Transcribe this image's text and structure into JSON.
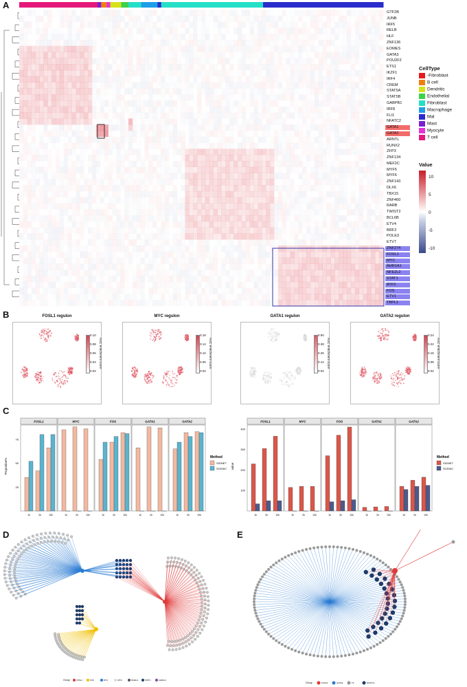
{
  "panels": {
    "a": "A",
    "b": "B",
    "c": "C",
    "d": "D",
    "e": "E"
  },
  "heatmap": {
    "genes": [
      "GTF2B",
      "JUNB",
      "IRF5",
      "RELB",
      "HLF",
      "ZNF136",
      "EOMES",
      "GATA3",
      "POU2F2",
      "ETS1",
      "IKZF1",
      "IRF4",
      "CREM",
      "STAT5A",
      "STAT5B",
      "GABPB1",
      "IRF8",
      "FLI1",
      "NFATC2",
      "GATA1",
      "GATA2",
      "ARNTL",
      "RUNX2",
      "ZFP3",
      "ZNF134",
      "MEF2C",
      "MYF5",
      "MYF6",
      "ZNF143",
      "DLX6",
      "TBX15",
      "ZNF460",
      "RARB",
      "TWIST2",
      "BCL6B",
      "ETV4",
      "BRF2",
      "POLE3",
      "ETV7",
      "ZNF274",
      "FOSL1",
      "MYC",
      "AHR1A1",
      "NFE2L2",
      "STAT1",
      "ATF3",
      "FOS",
      "ETV1",
      "TBPL1"
    ],
    "red_highlight": [
      "GATA1",
      "GATA2"
    ],
    "blue_highlight": [
      "ZNF274",
      "FOSL1",
      "MYC",
      "AHR1A1",
      "NFE2L2",
      "STAT1",
      "ATF3",
      "FOS",
      "ETV1",
      "TBPL1"
    ],
    "celltype_title": "CellType",
    "celltypes": [
      {
        "name": "-Fibroblast",
        "color": "#e41a1c"
      },
      {
        "name": "B cell",
        "color": "#f07f12"
      },
      {
        "name": "Dendritic",
        "color": "#d7e21a"
      },
      {
        "name": "Endothelial",
        "color": "#3ed14a"
      },
      {
        "name": "Fibroblast",
        "color": "#25dfc8"
      },
      {
        "name": "Macrophage",
        "color": "#1f9ee8"
      },
      {
        "name": "Mal",
        "color": "#2b2ccc"
      },
      {
        "name": "Mast",
        "color": "#7a1fd1"
      },
      {
        "name": "Myocyte",
        "color": "#e234d8"
      },
      {
        "name": "T cell",
        "color": "#e5197a"
      }
    ],
    "value_title": "Value",
    "value_ticks": [
      "10",
      "5",
      "0",
      "-5",
      "-10"
    ]
  },
  "umaps": [
    {
      "title": "FOSL1 regulon",
      "ticks": [
        "0.10",
        "0.08",
        "0.06",
        "0.04",
        "0.02"
      ],
      "ylab": "AUC enrichment score",
      "color": "#e05a66"
    },
    {
      "title": "MYC regulon",
      "ticks": [
        "0.18",
        "0.14",
        "0.10",
        "0.06",
        "0.02"
      ],
      "ylab": "AUC enrichment score",
      "color": "#e05a66"
    },
    {
      "title": "GATA1 regulon",
      "ticks": [
        "0.50",
        "0.38",
        "0.26",
        "0.14",
        "0.02"
      ],
      "ylab": "AUC enrichment score",
      "color": "#d9d9d9"
    },
    {
      "title": "GATA2 regulon",
      "ticks": [
        "0.24",
        "0.22",
        "0.15",
        "0.08",
        "0.02"
      ],
      "ylab": "AUC enrichment score",
      "color": "#e05a66"
    }
  ],
  "chart_data": [
    {
      "type": "bar",
      "title": "",
      "ylabel": "Proportion%",
      "xlabel": "",
      "ylim": [
        0,
        90
      ],
      "y_ticks": [
        "25",
        "50",
        "75"
      ],
      "facets": [
        "FOSL1",
        "MYC",
        "FOS",
        "GATA1",
        "GATA2"
      ],
      "categories": [
        "1k",
        "2k",
        "10k"
      ],
      "legend_title": "Method",
      "series": [
        {
          "name": "SIGNET",
          "color": "#f2b9a0",
          "values": {
            "FOSL1": [
              35,
              42,
              66
            ],
            "MYC": [
              85,
              88,
              86
            ],
            "FOS": [
              54,
              72,
              82
            ],
            "GATA1": [
              66,
              88,
              87
            ],
            "GATA2": [
              65,
              82,
              83
            ]
          }
        },
        {
          "name": "SCENIC",
          "color": "#5ab4cf",
          "values": {
            "FOSL1": [
              52,
              80,
              80
            ],
            "MYC": [
              0,
              0,
              0
            ],
            "FOS": [
              72,
              78,
              81
            ],
            "GATA1": [
              0,
              0,
              0
            ],
            "GATA2": [
              72,
              78,
              82
            ]
          }
        }
      ]
    },
    {
      "type": "bar",
      "title": "",
      "ylabel": "value",
      "xlabel": "",
      "ylim": [
        0,
        420
      ],
      "y_ticks": [
        "100",
        "200",
        "300",
        "400"
      ],
      "facets": [
        "FOSL1",
        "MYC",
        "FOS",
        "GATA1",
        "GATA2"
      ],
      "categories": [
        "1k",
        "2k",
        "10k"
      ],
      "legend_title": "Method",
      "series": [
        {
          "name": "SIGNET",
          "color": "#d9574a",
          "values": {
            "FOSL1": [
              230,
              305,
              365
            ],
            "MYC": [
              115,
              120,
              120
            ],
            "FOS": [
              270,
              370,
              410
            ],
            "GATA1": [
              18,
              20,
              22
            ],
            "GATA2": [
              120,
              150,
              165
            ]
          }
        },
        {
          "name": "SCENIC",
          "color": "#4d5a8c",
          "values": {
            "FOSL1": [
              35,
              50,
              50
            ],
            "MYC": [
              0,
              0,
              0
            ],
            "FOS": [
              45,
              50,
              55
            ],
            "GATA1": [
              0,
              0,
              0
            ],
            "GATA2": [
              105,
              120,
              125
            ]
          }
        }
      ]
    }
  ],
  "network_d": {
    "legend_label": "Group",
    "groups": [
      "FOSL1",
      "FOS",
      "MYC",
      "ATF3",
      "NFE2L2",
      "STAT1",
      "AHR1A1"
    ],
    "colors": [
      "#e03a3a",
      "#f0c000",
      "#2b7cd3",
      "#d9d9d9",
      "#555555",
      "#1f3b6a",
      "#7a4da8"
    ]
  },
  "network_e": {
    "legend_label": "Group",
    "groups": [
      "GATA1",
      "GATA2",
      "TF",
      "NFATC2"
    ],
    "colors": [
      "#e03a3a",
      "#2b7cd3",
      "#999999",
      "#1f3b6a"
    ]
  }
}
